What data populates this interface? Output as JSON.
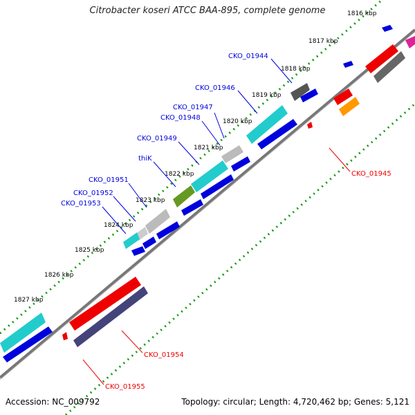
{
  "title": "Citrobacter koseri ATCC BAA-895, complete genome",
  "footer": {
    "accession": "Accession: NC_009792",
    "topology": "Topology: circular; Length: 4,720,462 bp; Genes: 5,121"
  },
  "ticks": [
    "1816 kbp",
    "1817 kbp",
    "1818 kbp",
    "1819 kbp",
    "1820 kbp",
    "1821 kbp",
    "1822 kbp",
    "1823 kbp",
    "1824 kbp",
    "1825 kbp",
    "1826 kbp",
    "1827 kbp"
  ],
  "gene_labels": {
    "blue": [
      "CKO_01944",
      "CKO_01946",
      "CKO_01947",
      "CKO_01948",
      "CKO_01949",
      "thiK",
      "CKO_01951",
      "CKO_01952",
      "CKO_01953"
    ],
    "red": [
      "CKO_01945",
      "CKO_01954",
      "CKO_01955"
    ]
  },
  "colors": {
    "forward_cds": "#0000dd",
    "reverse_cds": "#ee0000",
    "backbone": "#888888",
    "tick_green": "#119911",
    "cyan": "#22cccc",
    "olive": "#669922",
    "gray_dark": "#666666",
    "gray_light": "#bbbbbb",
    "orange": "#ff9900",
    "navy": "#44447a"
  }
}
